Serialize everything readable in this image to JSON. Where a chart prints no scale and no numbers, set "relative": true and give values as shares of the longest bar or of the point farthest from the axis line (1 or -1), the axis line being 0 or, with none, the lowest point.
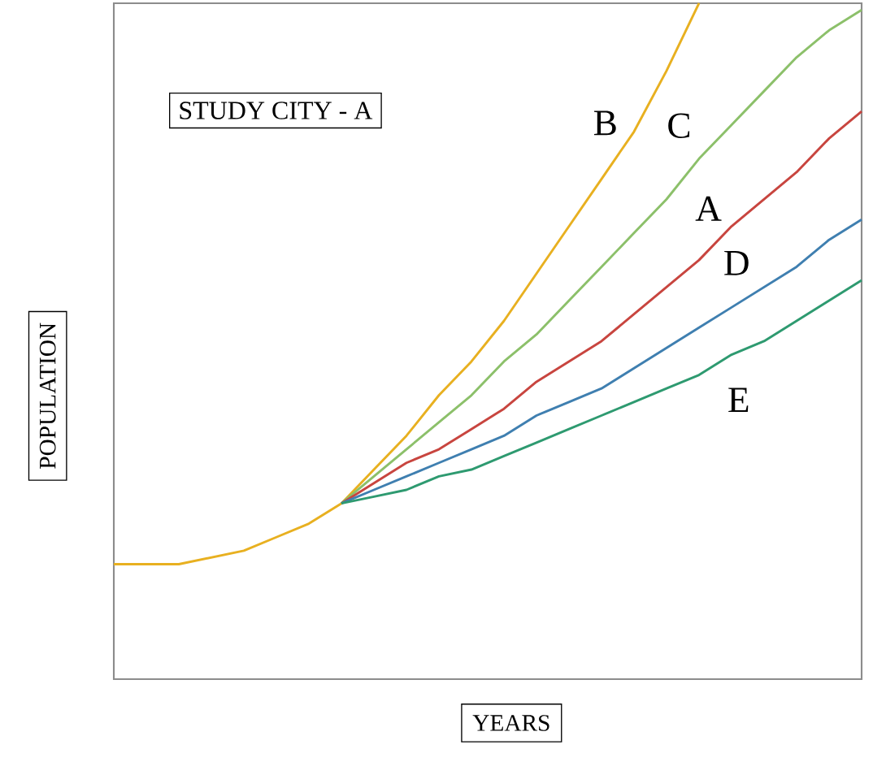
{
  "chart_data": {
    "type": "line",
    "relative": true,
    "title": "STUDY CITY  - A",
    "xlabel": "YEARS",
    "ylabel": "POPULATION",
    "marker": "none",
    "line_style": "solid",
    "categories": [
      null,
      null,
      null,
      null,
      null,
      null,
      null,
      null,
      null,
      null,
      null,
      null,
      null,
      null,
      null,
      null,
      null,
      null,
      null,
      null,
      null,
      null,
      null,
      null
    ],
    "series": [
      {
        "name": "B",
        "color": "#e8b020",
        "values": [
          0.17,
          0.17,
          0.17,
          0.18,
          0.19,
          0.21,
          0.23,
          0.26,
          0.31,
          0.36,
          0.42,
          0.47,
          0.53,
          0.6,
          0.67,
          0.74,
          0.81,
          0.9,
          1,
          null,
          null,
          null,
          null,
          null
        ]
      },
      {
        "name": "C",
        "color": "#8cc06a",
        "values": [
          null,
          null,
          null,
          null,
          null,
          null,
          null,
          0.26,
          0.3,
          0.34,
          0.38,
          0.42,
          0.47,
          0.51,
          0.56,
          0.61,
          0.66,
          0.71,
          0.77,
          0.82,
          0.87,
          0.92,
          0.96,
          0.99
        ]
      },
      {
        "name": "A",
        "color": "#c8453f",
        "values": [
          null,
          null,
          null,
          null,
          null,
          null,
          null,
          0.26,
          0.29,
          0.32,
          0.34,
          0.37,
          0.4,
          0.44,
          0.47,
          0.5,
          0.54,
          0.58,
          0.62,
          0.67,
          0.71,
          0.75,
          0.8,
          0.84
        ]
      },
      {
        "name": "D",
        "color": "#3f7fb0",
        "values": [
          null,
          null,
          null,
          null,
          null,
          null,
          null,
          0.26,
          0.28,
          0.3,
          0.32,
          0.34,
          0.36,
          0.39,
          0.41,
          0.43,
          0.46,
          0.49,
          0.52,
          0.55,
          0.58,
          0.61,
          0.65,
          0.68
        ]
      },
      {
        "name": "E",
        "color": "#2e9a70",
        "values": [
          null,
          null,
          null,
          null,
          null,
          null,
          null,
          0.26,
          0.27,
          0.28,
          0.3,
          0.31,
          0.33,
          0.35,
          0.37,
          0.39,
          0.41,
          0.43,
          0.45,
          0.48,
          0.5,
          0.53,
          0.56,
          0.59
        ]
      }
    ]
  }
}
